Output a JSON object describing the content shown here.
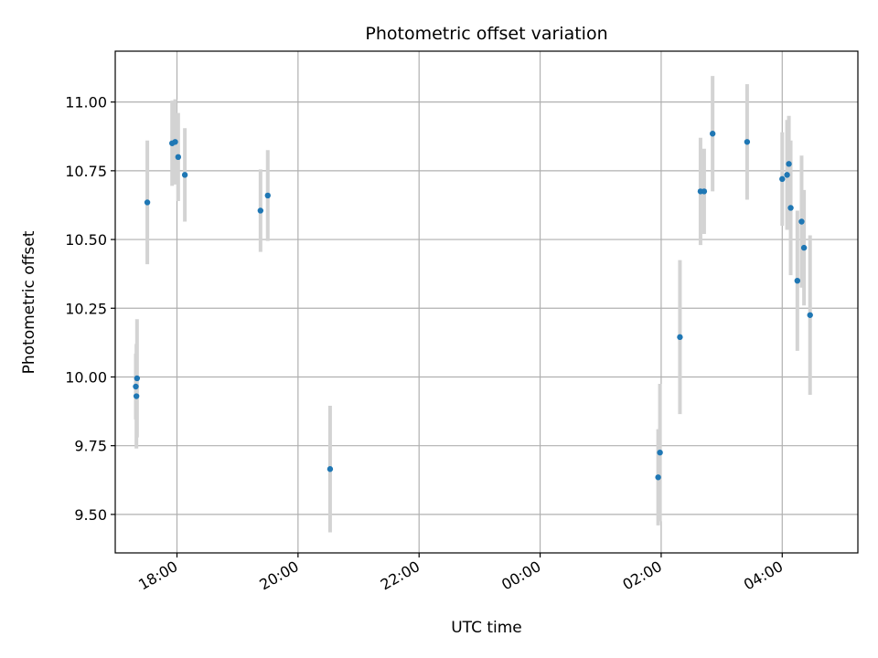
{
  "chart_data": {
    "type": "scatter",
    "title": "Photometric offset variation",
    "xlabel": "UTC time",
    "ylabel": "Photometric offset",
    "x_unit": "hours since 00:00 of first day",
    "xlim": [
      16.98,
      29.25
    ],
    "ylim": [
      9.36,
      11.185
    ],
    "grid": true,
    "marker_color": "#1f77b4",
    "errorbar_color": "#d3d3d3",
    "x_ticks": [
      {
        "value": 18,
        "label": "18:00"
      },
      {
        "value": 20,
        "label": "20:00"
      },
      {
        "value": 22,
        "label": "22:00"
      },
      {
        "value": 24,
        "label": "00:00"
      },
      {
        "value": 26,
        "label": "02:00"
      },
      {
        "value": 28,
        "label": "04:00"
      }
    ],
    "y_ticks": [
      {
        "value": 9.5,
        "label": "9.50"
      },
      {
        "value": 9.75,
        "label": "9.75"
      },
      {
        "value": 10.0,
        "label": "10.00"
      },
      {
        "value": 10.25,
        "label": "10.25"
      },
      {
        "value": 10.5,
        "label": "10.50"
      },
      {
        "value": 10.75,
        "label": "10.75"
      },
      {
        "value": 11.0,
        "label": "11.00"
      }
    ],
    "points": [
      {
        "x": 17.32,
        "y": 9.965,
        "err": 0.12
      },
      {
        "x": 17.33,
        "y": 9.93,
        "err": 0.19
      },
      {
        "x": 17.34,
        "y": 9.995,
        "err": 0.215
      },
      {
        "x": 17.51,
        "y": 10.635,
        "err": 0.225
      },
      {
        "x": 17.92,
        "y": 10.85,
        "err": 0.155
      },
      {
        "x": 17.97,
        "y": 10.855,
        "err": 0.155
      },
      {
        "x": 18.02,
        "y": 10.8,
        "err": 0.16
      },
      {
        "x": 18.13,
        "y": 10.735,
        "err": 0.17
      },
      {
        "x": 19.38,
        "y": 10.605,
        "err": 0.15
      },
      {
        "x": 19.5,
        "y": 10.66,
        "err": 0.165
      },
      {
        "x": 20.53,
        "y": 9.665,
        "err": 0.23
      },
      {
        "x": 25.95,
        "y": 9.635,
        "err": 0.175
      },
      {
        "x": 25.98,
        "y": 9.725,
        "err": 0.25
      },
      {
        "x": 26.31,
        "y": 10.145,
        "err": 0.28
      },
      {
        "x": 26.65,
        "y": 10.675,
        "err": 0.195
      },
      {
        "x": 26.71,
        "y": 10.675,
        "err": 0.155
      },
      {
        "x": 26.85,
        "y": 10.885,
        "err": 0.21
      },
      {
        "x": 27.42,
        "y": 10.855,
        "err": 0.21
      },
      {
        "x": 28.0,
        "y": 10.72,
        "err": 0.17
      },
      {
        "x": 28.08,
        "y": 10.735,
        "err": 0.2
      },
      {
        "x": 28.11,
        "y": 10.775,
        "err": 0.175
      },
      {
        "x": 28.14,
        "y": 10.615,
        "err": 0.245
      },
      {
        "x": 28.25,
        "y": 10.35,
        "err": 0.255
      },
      {
        "x": 28.32,
        "y": 10.565,
        "err": 0.24
      },
      {
        "x": 28.36,
        "y": 10.47,
        "err": 0.21
      },
      {
        "x": 28.46,
        "y": 10.225,
        "err": 0.29
      }
    ]
  }
}
